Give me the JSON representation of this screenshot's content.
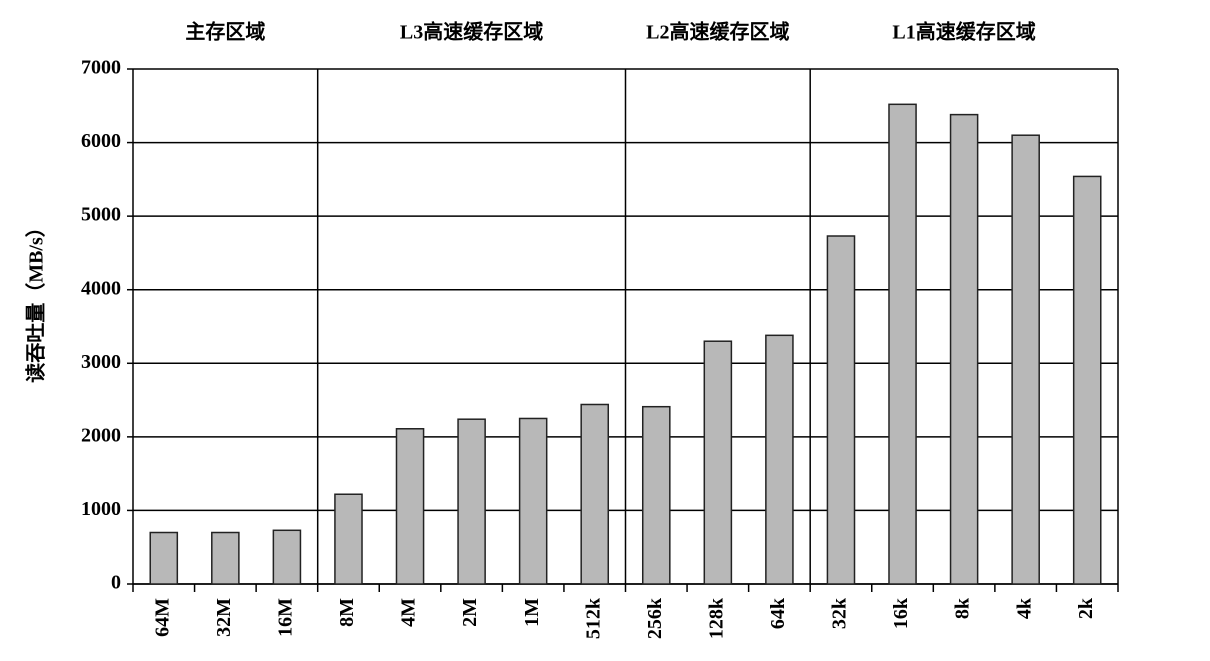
{
  "chart_data": {
    "type": "bar",
    "y_label": "读吞吐量（MB/s）",
    "categories": [
      "64M",
      "32M",
      "16M",
      "8M",
      "4M",
      "2M",
      "1M",
      "512k",
      "256k",
      "128k",
      "64k",
      "32k",
      "16k",
      "8k",
      "4k",
      "2k"
    ],
    "values": [
      700,
      700,
      730,
      1220,
      2110,
      2240,
      2250,
      2440,
      2410,
      3300,
      3380,
      4730,
      6520,
      6380,
      6100,
      5540
    ],
    "color": "#b8b8b8",
    "ylim": [
      0,
      7000
    ],
    "yticks": [
      0,
      1000,
      2000,
      3000,
      4000,
      5000,
      6000,
      7000
    ],
    "grid": true,
    "regions": [
      {
        "label": "主存区域",
        "from": "64M",
        "to": "16M"
      },
      {
        "label": "L3高速缓存区域",
        "from": "8M",
        "to": "512k"
      },
      {
        "label": "L2高速缓存区域",
        "from": "256k",
        "to": "64k"
      },
      {
        "label": "L1高速缓存区域",
        "from": "32k",
        "to": "2k"
      }
    ]
  }
}
